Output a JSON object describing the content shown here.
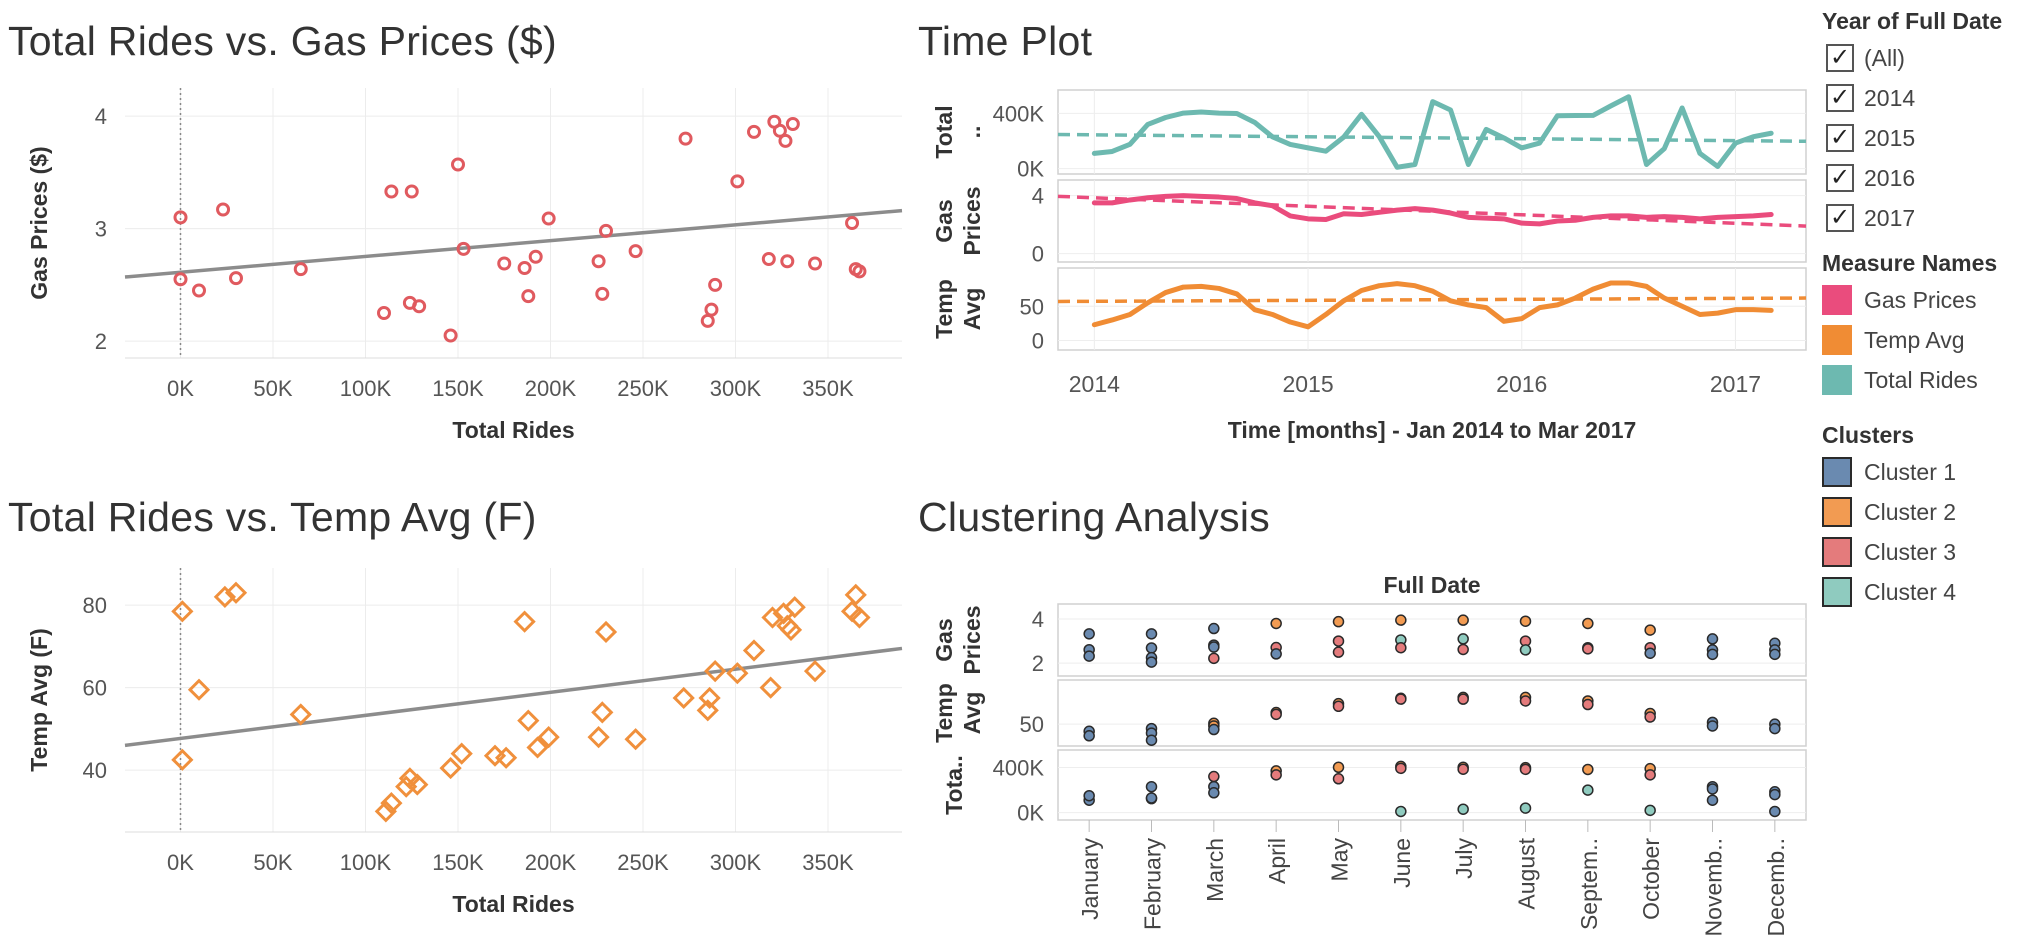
{
  "chart_data": [
    {
      "type": "scatter",
      "title": "Total Rides vs. Gas Prices ($)",
      "xlabel": "Total Rides",
      "ylabel": "Gas Prices ($)",
      "xlim": [
        -30000,
        390000
      ],
      "ylim": [
        1.85,
        4.25
      ],
      "x_ticks": [
        "0K",
        "50K",
        "100K",
        "150K",
        "200K",
        "250K",
        "300K",
        "350K"
      ],
      "x_tick_values": [
        0,
        50000,
        100000,
        150000,
        200000,
        250000,
        300000,
        350000
      ],
      "y_ticks": [
        "2",
        "3",
        "4"
      ],
      "y_tick_values": [
        2,
        3,
        4
      ],
      "marker": "circle",
      "color": "#e05a5f",
      "points": [
        [
          0,
          3.1
        ],
        [
          0,
          2.55
        ],
        [
          10000,
          2.45
        ],
        [
          23000,
          3.17
        ],
        [
          30000,
          2.56
        ],
        [
          65000,
          2.64
        ],
        [
          110000,
          2.25
        ],
        [
          114000,
          3.33
        ],
        [
          124000,
          2.34
        ],
        [
          125000,
          3.33
        ],
        [
          129000,
          2.31
        ],
        [
          146000,
          2.05
        ],
        [
          150000,
          3.57
        ],
        [
          153000,
          2.82
        ],
        [
          175000,
          2.69
        ],
        [
          186000,
          2.65
        ],
        [
          188000,
          2.4
        ],
        [
          192000,
          2.75
        ],
        [
          199000,
          3.09
        ],
        [
          226000,
          2.71
        ],
        [
          228000,
          2.42
        ],
        [
          230000,
          2.98
        ],
        [
          246000,
          2.8
        ],
        [
          273000,
          3.8
        ],
        [
          285000,
          2.18
        ],
        [
          287000,
          2.28
        ],
        [
          289000,
          2.5
        ],
        [
          301000,
          3.42
        ],
        [
          310000,
          3.86
        ],
        [
          318000,
          2.73
        ],
        [
          321000,
          3.95
        ],
        [
          324000,
          3.87
        ],
        [
          327000,
          3.78
        ],
        [
          328000,
          2.71
        ],
        [
          331000,
          3.93
        ],
        [
          343000,
          2.69
        ],
        [
          363000,
          3.05
        ],
        [
          365000,
          2.64
        ],
        [
          367000,
          2.62
        ]
      ],
      "trend": [
        [
          -30000,
          2.57
        ],
        [
          390000,
          3.16
        ]
      ]
    },
    {
      "type": "scatter",
      "title": "Total Rides vs. Temp Avg (F)",
      "xlabel": "Total Rides",
      "ylabel": "Temp Avg (F)",
      "xlim": [
        -30000,
        390000
      ],
      "ylim": [
        25,
        89
      ],
      "x_ticks": [
        "0K",
        "50K",
        "100K",
        "150K",
        "200K",
        "250K",
        "300K",
        "350K"
      ],
      "x_tick_values": [
        0,
        50000,
        100000,
        150000,
        200000,
        250000,
        300000,
        350000
      ],
      "y_ticks": [
        "40",
        "60",
        "80"
      ],
      "y_tick_values": [
        40,
        60,
        80
      ],
      "marker": "diamond",
      "color": "#f0903c",
      "points": [
        [
          1000,
          78.5
        ],
        [
          1000,
          42.5
        ],
        [
          10000,
          59.5
        ],
        [
          24000,
          82
        ],
        [
          30000,
          83
        ],
        [
          65000,
          53.5
        ],
        [
          111000,
          30
        ],
        [
          114000,
          32
        ],
        [
          122000,
          36
        ],
        [
          124000,
          38
        ],
        [
          128000,
          36.5
        ],
        [
          146000,
          40.5
        ],
        [
          152000,
          44
        ],
        [
          170000,
          43.5
        ],
        [
          176000,
          43
        ],
        [
          186000,
          76
        ],
        [
          188000,
          52
        ],
        [
          193000,
          45.5
        ],
        [
          199000,
          48
        ],
        [
          226000,
          48
        ],
        [
          228000,
          54
        ],
        [
          230000,
          73.5
        ],
        [
          246000,
          47.5
        ],
        [
          272000,
          57.5
        ],
        [
          285000,
          54.5
        ],
        [
          286000,
          57.5
        ],
        [
          289000,
          64
        ],
        [
          301000,
          63.5
        ],
        [
          310000,
          69
        ],
        [
          319000,
          60
        ],
        [
          320000,
          77
        ],
        [
          326000,
          78
        ],
        [
          328000,
          75
        ],
        [
          330000,
          74
        ],
        [
          332000,
          79.5
        ],
        [
          343000,
          64
        ],
        [
          363000,
          78.5
        ],
        [
          365000,
          82.5
        ],
        [
          367000,
          77
        ]
      ],
      "trend": [
        [
          -30000,
          46
        ],
        [
          390000,
          69.5
        ]
      ]
    },
    {
      "type": "line",
      "title": "Time Plot",
      "xlabel": "Time [months] - Jan 2014 to Mar 2017",
      "x_ticks": [
        "2014",
        "2015",
        "2016",
        "2017"
      ],
      "x_tick_values": [
        2014,
        2015,
        2016,
        2017
      ],
      "x_start": 2014,
      "x_end": 2017.167,
      "series": [
        {
          "name": "Total Rides",
          "label": "Total ..",
          "color": "#6db9b0",
          "ylim": [
            -10000,
            540000
          ],
          "y_ticks": [
            "0K",
            "400K"
          ],
          "y_tick_values": [
            0,
            400000
          ],
          "values": [
            110000,
            124000,
            176000,
            320000,
            370000,
            402000,
            410000,
            402000,
            399000,
            335000,
            230000,
            175000,
            150000,
            126000,
            228000,
            393000,
            231000,
            10000,
            30000,
            485000,
            424000,
            30000,
            284000,
            222000,
            150000,
            185000,
            383000,
            384000,
            385000,
            454000,
            520000,
            30000,
            145000,
            439000,
            110000,
            15000,
            185000,
            231000,
            256000
          ],
          "trend": [
            247000,
            198000
          ]
        },
        {
          "name": "Gas Prices",
          "label": "Gas Prices",
          "color": "#ea4c7d",
          "ylim": [
            -0.3,
            4.8
          ],
          "y_ticks": [
            "0",
            "4"
          ],
          "y_tick_values": [
            0,
            4
          ],
          "values": [
            3.5,
            3.5,
            3.7,
            3.85,
            3.95,
            4.0,
            3.95,
            3.9,
            3.8,
            3.5,
            3.3,
            2.6,
            2.4,
            2.35,
            2.75,
            2.7,
            2.85,
            3.0,
            3.1,
            3.0,
            2.8,
            2.5,
            2.45,
            2.4,
            2.1,
            2.05,
            2.25,
            2.3,
            2.5,
            2.6,
            2.6,
            2.5,
            2.55,
            2.5,
            2.4,
            2.5,
            2.55,
            2.6,
            2.7
          ],
          "trend": [
            3.95,
            1.9
          ]
        },
        {
          "name": "Temp Avg",
          "label": "Temp Avg",
          "color": "#f08c34",
          "ylim": [
            -8,
            100
          ],
          "y_ticks": [
            "0",
            "50"
          ],
          "y_tick_values": [
            0,
            50
          ],
          "values": [
            23,
            30,
            38,
            55,
            70,
            78,
            79,
            76,
            68,
            45,
            38,
            27,
            20,
            38,
            58,
            73,
            80,
            83,
            80,
            72,
            58,
            52,
            48,
            28,
            32,
            48,
            52,
            62,
            75,
            84,
            84,
            79,
            62,
            50,
            38,
            40,
            45,
            45,
            44
          ],
          "trend": [
            57,
            62
          ]
        }
      ]
    },
    {
      "type": "scatter",
      "title": "Clustering Analysis",
      "xlabel": "Full Date",
      "categories": [
        "January",
        "February",
        "March",
        "April",
        "May",
        "June",
        "July",
        "August",
        "Septem..",
        "October",
        "Novemb..",
        "Decemb.."
      ],
      "rows": [
        {
          "label": "Gas Prices",
          "ylim": [
            1.6,
            4.5
          ],
          "y_ticks": [
            "2",
            "4"
          ],
          "y_tick_values": [
            2,
            4
          ]
        },
        {
          "label": "Temp Avg",
          "ylim": [
            30,
            95
          ],
          "y_ticks": [
            "50"
          ],
          "y_tick_values": [
            50
          ]
        },
        {
          "label": "Tota..",
          "ylim": [
            -30000,
            520000
          ],
          "y_ticks": [
            "0K",
            "400K"
          ],
          "y_tick_values": [
            0,
            400000
          ]
        }
      ],
      "cluster_colors": [
        "#6a8ab0",
        "#f29b52",
        "#e47b7c",
        "#8fcbbf"
      ],
      "points": [
        [
          0,
          0,
          3.33,
          0
        ],
        [
          0,
          0,
          2.61,
          0
        ],
        [
          0,
          0,
          2.32,
          0
        ],
        [
          0,
          1,
          42,
          0
        ],
        [
          0,
          1,
          37,
          0
        ],
        [
          0,
          2,
          110000,
          0
        ],
        [
          0,
          2,
          150000,
          0
        ],
        [
          1,
          0,
          3.33,
          0
        ],
        [
          1,
          0,
          2.69,
          0
        ],
        [
          1,
          0,
          2.25,
          0
        ],
        [
          1,
          0,
          2.05,
          0
        ],
        [
          1,
          1,
          45,
          0
        ],
        [
          1,
          1,
          40,
          0
        ],
        [
          1,
          1,
          32,
          0
        ],
        [
          1,
          2,
          124000,
          0
        ],
        [
          1,
          2,
          130000,
          0
        ],
        [
          1,
          2,
          230000,
          0
        ],
        [
          2,
          0,
          3.57,
          0
        ],
        [
          2,
          0,
          2.82,
          0
        ],
        [
          2,
          0,
          2.73,
          0
        ],
        [
          2,
          0,
          2.22,
          2
        ],
        [
          2,
          1,
          51,
          1
        ],
        [
          2,
          1,
          48,
          1
        ],
        [
          2,
          1,
          44,
          0
        ],
        [
          2,
          2,
          231000,
          0
        ],
        [
          2,
          2,
          176000,
          0
        ],
        [
          2,
          2,
          320000,
          2
        ],
        [
          3,
          0,
          3.8,
          1
        ],
        [
          3,
          0,
          2.71,
          2
        ],
        [
          3,
          0,
          2.42,
          0
        ],
        [
          3,
          1,
          63,
          1
        ],
        [
          3,
          1,
          61,
          2
        ],
        [
          3,
          2,
          370000,
          1
        ],
        [
          3,
          2,
          335000,
          2
        ],
        [
          4,
          0,
          3.88,
          1
        ],
        [
          4,
          0,
          3.0,
          2
        ],
        [
          4,
          0,
          2.5,
          2
        ],
        [
          4,
          1,
          73,
          1
        ],
        [
          4,
          1,
          70,
          2
        ],
        [
          4,
          2,
          402000,
          1
        ],
        [
          4,
          2,
          300000,
          2
        ],
        [
          5,
          0,
          3.95,
          1
        ],
        [
          5,
          0,
          3.05,
          3
        ],
        [
          5,
          0,
          2.7,
          2
        ],
        [
          5,
          1,
          79,
          1
        ],
        [
          5,
          1,
          78,
          2
        ],
        [
          5,
          2,
          410000,
          1
        ],
        [
          5,
          2,
          393000,
          2
        ],
        [
          5,
          2,
          10000,
          3
        ],
        [
          6,
          0,
          3.95,
          1
        ],
        [
          6,
          0,
          3.1,
          3
        ],
        [
          6,
          0,
          2.62,
          2
        ],
        [
          6,
          1,
          80,
          1
        ],
        [
          6,
          1,
          78,
          2
        ],
        [
          6,
          2,
          402000,
          1
        ],
        [
          6,
          2,
          385000,
          2
        ],
        [
          6,
          2,
          30000,
          3
        ],
        [
          7,
          0,
          3.9,
          1
        ],
        [
          7,
          0,
          3.0,
          2
        ],
        [
          7,
          0,
          2.6,
          3
        ],
        [
          7,
          1,
          80,
          1
        ],
        [
          7,
          1,
          76,
          2
        ],
        [
          7,
          2,
          399000,
          1
        ],
        [
          7,
          2,
          384000,
          2
        ],
        [
          7,
          2,
          40000,
          3
        ],
        [
          8,
          0,
          3.8,
          1
        ],
        [
          8,
          0,
          2.7,
          2
        ],
        [
          8,
          0,
          2.65,
          2
        ],
        [
          8,
          1,
          76,
          1
        ],
        [
          8,
          1,
          72,
          2
        ],
        [
          8,
          2,
          383000,
          1
        ],
        [
          8,
          2,
          200000,
          3
        ],
        [
          9,
          0,
          3.5,
          1
        ],
        [
          9,
          0,
          2.7,
          2
        ],
        [
          9,
          0,
          2.45,
          0
        ],
        [
          9,
          1,
          62,
          1
        ],
        [
          9,
          1,
          58,
          2
        ],
        [
          9,
          2,
          390000,
          1
        ],
        [
          9,
          2,
          335000,
          2
        ],
        [
          9,
          2,
          20000,
          3
        ],
        [
          10,
          0,
          3.1,
          0
        ],
        [
          10,
          0,
          2.6,
          0
        ],
        [
          10,
          0,
          2.4,
          0
        ],
        [
          10,
          1,
          52,
          0
        ],
        [
          10,
          1,
          48,
          0
        ],
        [
          10,
          2,
          230000,
          0
        ],
        [
          10,
          2,
          110000,
          0
        ],
        [
          10,
          2,
          210000,
          0
        ],
        [
          11,
          0,
          2.9,
          0
        ],
        [
          11,
          0,
          2.6,
          0
        ],
        [
          11,
          0,
          2.4,
          0
        ],
        [
          11,
          1,
          50,
          0
        ],
        [
          11,
          1,
          45,
          0
        ],
        [
          11,
          2,
          185000,
          0
        ],
        [
          11,
          2,
          160000,
          0
        ],
        [
          11,
          2,
          10000,
          0
        ]
      ]
    }
  ],
  "legend": {
    "year": {
      "title": "Year of Full Date",
      "items": [
        {
          "label": "(All)",
          "checked": true
        },
        {
          "label": "2014",
          "checked": true
        },
        {
          "label": "2015",
          "checked": true
        },
        {
          "label": "2016",
          "checked": true
        },
        {
          "label": "2017",
          "checked": true
        }
      ]
    },
    "measures": {
      "title": "Measure Names",
      "items": [
        {
          "label": "Gas Prices",
          "color": "#ea4c7d"
        },
        {
          "label": "Temp Avg",
          "color": "#f08c34"
        },
        {
          "label": "Total Rides",
          "color": "#6db9b0"
        }
      ]
    },
    "clusters": {
      "title": "Clusters",
      "items": [
        {
          "label": "Cluster 1",
          "color": "#6a8ab0"
        },
        {
          "label": "Cluster 2",
          "color": "#f29b52"
        },
        {
          "label": "Cluster 3",
          "color": "#e47b7c"
        },
        {
          "label": "Cluster 4",
          "color": "#8fcbbf"
        }
      ]
    }
  }
}
